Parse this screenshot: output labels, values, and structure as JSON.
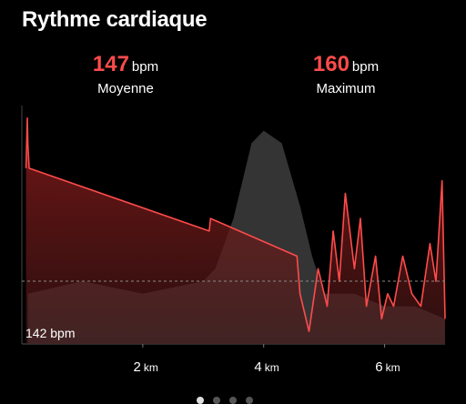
{
  "title": "Rythme cardiaque",
  "stats": {
    "average": {
      "value": "147",
      "unit": "bpm",
      "label": "Moyenne"
    },
    "maximum": {
      "value": "160",
      "unit": "bpm",
      "label": "Maximum"
    }
  },
  "chart_data": {
    "type": "area",
    "baseline_label": "142 bpm",
    "xlabel_unit": "km",
    "x_ticks": [
      {
        "value": 2,
        "label": "2",
        "unit": "km"
      },
      {
        "value": 4,
        "label": "4",
        "unit": "km"
      },
      {
        "value": 6,
        "label": "6",
        "unit": "km"
      }
    ],
    "xlim": [
      0,
      7
    ],
    "ylim": [
      142,
      161
    ],
    "reference_line": 147,
    "heart_rate_series": {
      "color": "#ff4b4b",
      "x": [
        0.07,
        0.09,
        0.1,
        0.12,
        3.1,
        3.12,
        4.55,
        4.6,
        4.75,
        4.9,
        5.05,
        5.15,
        5.25,
        5.35,
        5.5,
        5.6,
        5.7,
        5.85,
        5.95,
        6.05,
        6.15,
        6.3,
        6.45,
        6.6,
        6.75,
        6.85,
        6.95,
        7.0
      ],
      "y": [
        156,
        160,
        158,
        156,
        151,
        152,
        149,
        146,
        143,
        148,
        145,
        151,
        147,
        154,
        148,
        152,
        145,
        149,
        144,
        146,
        145,
        149,
        146,
        145,
        150,
        147,
        155,
        144
      ]
    },
    "background_series": {
      "color": "#3a3a3a",
      "x": [
        0.1,
        1.0,
        2.0,
        3.0,
        3.2,
        3.5,
        3.8,
        4.0,
        4.3,
        4.6,
        4.8,
        5.0,
        5.5,
        6.0,
        6.5,
        7.0
      ],
      "y": [
        146,
        147,
        146,
        147,
        148,
        152,
        158,
        159,
        158,
        153,
        149,
        146,
        146,
        145,
        145,
        144
      ]
    }
  },
  "pager": {
    "count": 4,
    "active": 0
  }
}
